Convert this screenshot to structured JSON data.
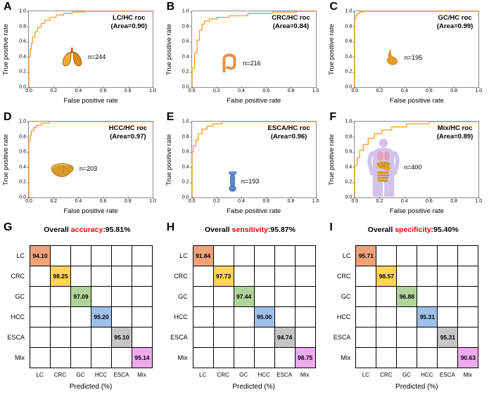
{
  "colors": {
    "roc_curve": "#f59b25",
    "keyword_red": "#fe0000",
    "diagonal_cells": [
      "#f1a17a",
      "#fdd35c",
      "#b0d59c",
      "#9fc0e8",
      "#c6c6c6",
      "#eeaaee"
    ]
  },
  "chart_data": [
    {
      "type": "line",
      "panel": "A",
      "title": "LC/HC roc",
      "area": 0.9,
      "n": 244,
      "icon": "lungs-icon",
      "xlabel": "False positive rate",
      "ylabel": "True positive rate",
      "xlim": [
        0,
        1
      ],
      "ylim": [
        0,
        1
      ],
      "ticks": [
        0,
        0.2,
        0.4,
        0.6,
        0.8,
        1
      ],
      "series": [
        {
          "name": "ROC",
          "x": [
            0,
            0,
            0.01,
            0.02,
            0.03,
            0.05,
            0.07,
            0.1,
            0.13,
            0.17,
            0.22,
            0.28,
            0.35,
            0.45,
            0.6,
            1
          ],
          "y": [
            0,
            0.28,
            0.4,
            0.5,
            0.58,
            0.66,
            0.73,
            0.79,
            0.84,
            0.88,
            0.92,
            0.95,
            0.97,
            0.99,
            1,
            1
          ]
        }
      ]
    },
    {
      "type": "line",
      "panel": "B",
      "title": "CRC/HC roc",
      "area": 0.84,
      "n": 216,
      "icon": "colon-icon",
      "xlabel": "False positive rate",
      "ylabel": "True positive rate",
      "xlim": [
        0,
        1
      ],
      "ylim": [
        0,
        1
      ],
      "ticks": [
        0,
        0.2,
        0.4,
        0.6,
        0.8,
        1
      ],
      "series": [
        {
          "name": "ROC",
          "x": [
            0,
            0,
            0.02,
            0.04,
            0.06,
            0.08,
            0.1,
            0.14,
            0.2,
            0.3,
            0.45,
            0.65,
            0.85,
            1
          ],
          "y": [
            0,
            0.1,
            0.25,
            0.45,
            0.62,
            0.75,
            0.83,
            0.87,
            0.9,
            0.92,
            0.94,
            0.97,
            0.99,
            1
          ]
        }
      ]
    },
    {
      "type": "line",
      "panel": "C",
      "title": "GC/HC roc",
      "area": 0.99,
      "n": 195,
      "icon": "stomach-icon",
      "xlabel": "False positive rate",
      "ylabel": "True positive rate",
      "xlim": [
        0,
        1
      ],
      "ylim": [
        0,
        1
      ],
      "ticks": [
        0,
        0.2,
        0.4,
        0.6,
        0.8,
        1
      ],
      "series": [
        {
          "name": "ROC",
          "x": [
            0,
            0,
            0.01,
            0.02,
            0.04,
            0.07,
            0.12,
            1
          ],
          "y": [
            0,
            0.82,
            0.9,
            0.94,
            0.97,
            0.99,
            1,
            1
          ]
        }
      ]
    },
    {
      "type": "line",
      "panel": "D",
      "title": "HCC/HC roc",
      "area": 0.97,
      "n": 203,
      "icon": "liver-icon",
      "xlabel": "False positive rate",
      "ylabel": "True positive rate",
      "xlim": [
        0,
        1
      ],
      "ylim": [
        0,
        1
      ],
      "ticks": [
        0,
        0.2,
        0.4,
        0.6,
        0.8,
        1
      ],
      "series": [
        {
          "name": "ROC",
          "x": [
            0,
            0,
            0.01,
            0.02,
            0.04,
            0.06,
            0.1,
            0.16,
            0.28,
            1
          ],
          "y": [
            0,
            0.62,
            0.74,
            0.82,
            0.88,
            0.92,
            0.95,
            0.98,
            1,
            1
          ]
        }
      ]
    },
    {
      "type": "line",
      "panel": "E",
      "title": "ESCA/HC roc",
      "area": 0.96,
      "n": 193,
      "icon": "esophagus-icon",
      "xlabel": "False positive rate",
      "ylabel": "True positive rate",
      "xlim": [
        0,
        1
      ],
      "ylim": [
        0,
        1
      ],
      "ticks": [
        0,
        0.2,
        0.4,
        0.6,
        0.8,
        1
      ],
      "series": [
        {
          "name": "ROC",
          "x": [
            0,
            0,
            0.01,
            0.03,
            0.05,
            0.08,
            0.12,
            0.17,
            0.24,
            0.33,
            1
          ],
          "y": [
            0,
            0.52,
            0.6,
            0.68,
            0.76,
            0.84,
            0.9,
            0.94,
            0.97,
            1,
            1
          ]
        }
      ]
    },
    {
      "type": "line",
      "panel": "F",
      "title": "Mix/HC roc",
      "area": 0.89,
      "n": 400,
      "icon": "body-icon",
      "xlabel": "False positive rate",
      "ylabel": "True positive rate",
      "xlim": [
        0,
        1
      ],
      "ylim": [
        0,
        1
      ],
      "ticks": [
        0,
        0.2,
        0.4,
        0.6,
        0.8,
        1
      ],
      "series": [
        {
          "name": "ROC",
          "x": [
            0,
            0,
            0.02,
            0.04,
            0.07,
            0.11,
            0.16,
            0.22,
            0.3,
            0.42,
            0.6,
            0.85,
            1
          ],
          "y": [
            0,
            0.3,
            0.42,
            0.52,
            0.62,
            0.7,
            0.78,
            0.84,
            0.89,
            0.93,
            0.97,
            1,
            1
          ]
        }
      ]
    },
    {
      "type": "heatmap",
      "panel": "G",
      "title_parts": {
        "prefix": "Overall ",
        "keyword": "accuracy",
        "suffix": ":95.81%"
      },
      "overall": 95.81,
      "categories": [
        "LC",
        "CRC",
        "GC",
        "HCC",
        "ESCA",
        "Mix"
      ],
      "diagonal": [
        94.1,
        98.25,
        97.09,
        95.2,
        95.1,
        95.14
      ],
      "xlabel": "Predicted (%)"
    },
    {
      "type": "heatmap",
      "panel": "H",
      "title_parts": {
        "prefix": "Overall ",
        "keyword": "sensitivity",
        "suffix": ":95.87%"
      },
      "overall": 95.87,
      "categories": [
        "LC",
        "CRC",
        "GC",
        "HCC",
        "ESCA",
        "Mix"
      ],
      "diagonal": [
        91.84,
        97.73,
        97.44,
        95.0,
        94.74,
        98.75
      ],
      "xlabel": "Predicted (%)"
    },
    {
      "type": "heatmap",
      "panel": "I",
      "title_parts": {
        "prefix": "Overall ",
        "keyword": "specificity",
        "suffix": ":95.40%"
      },
      "overall": 95.4,
      "categories": [
        "LC",
        "CRC",
        "GC",
        "HCC",
        "ESCA",
        "Mix"
      ],
      "diagonal": [
        95.71,
        98.57,
        96.88,
        95.31,
        95.31,
        90.63
      ],
      "xlabel": "Predicted (%)"
    }
  ]
}
